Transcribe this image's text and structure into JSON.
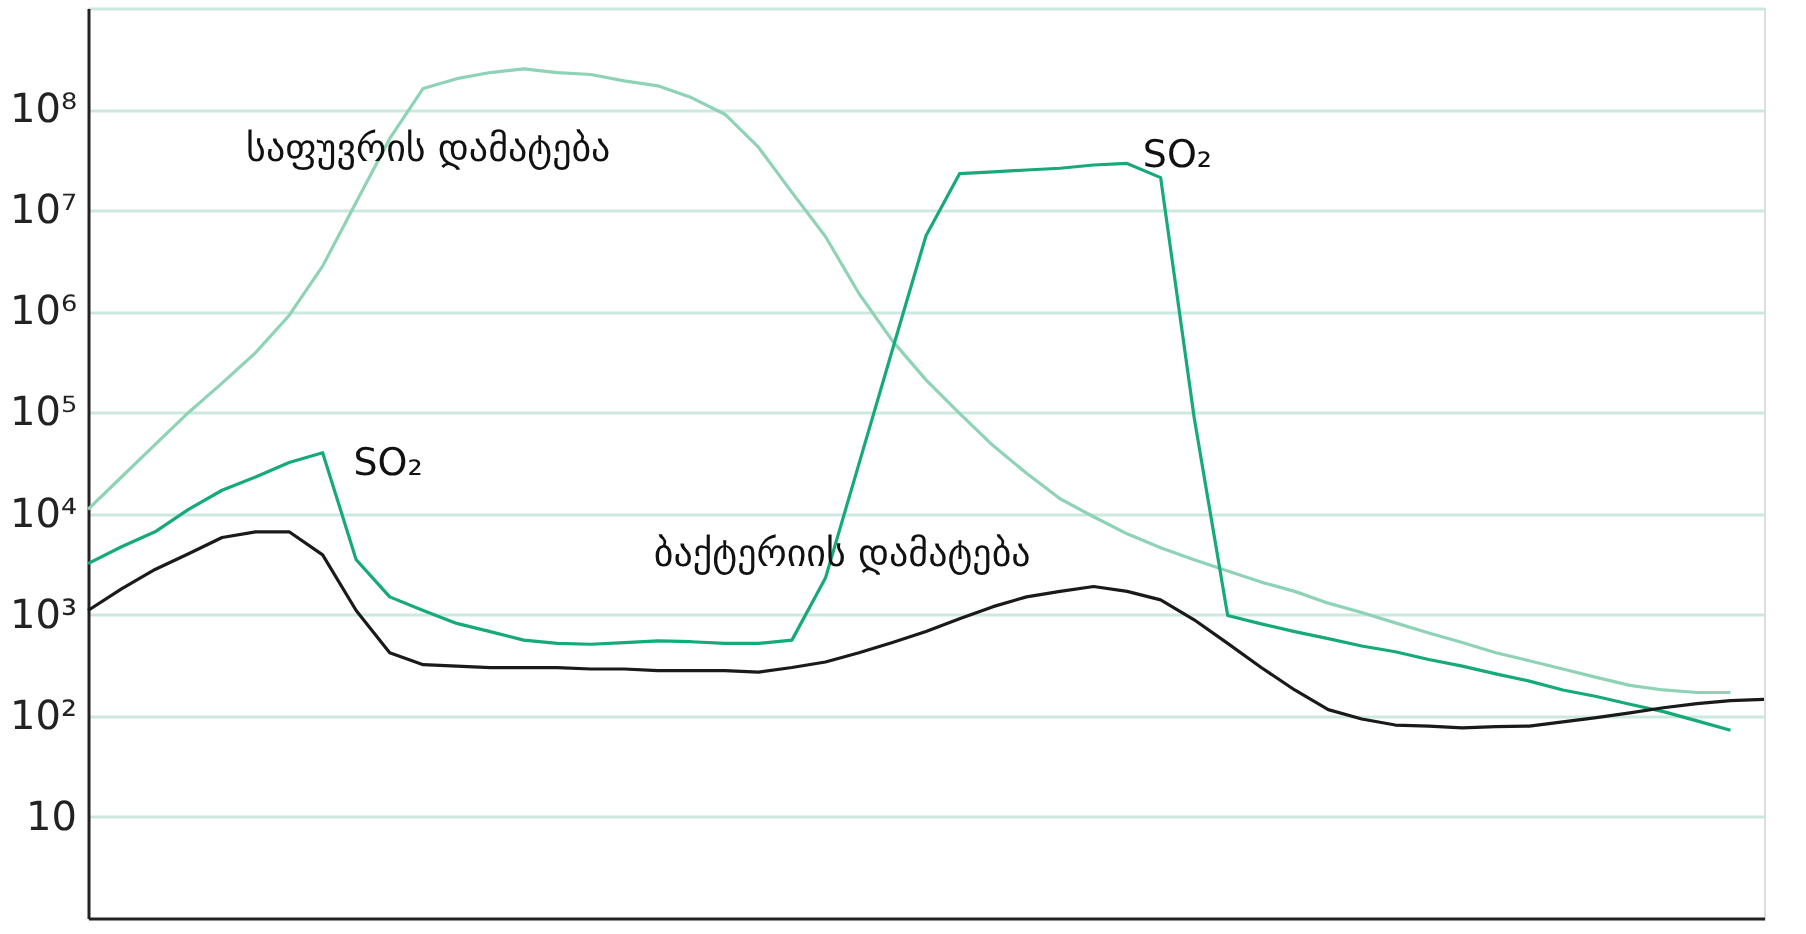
{
  "chart_data": {
    "type": "line",
    "log": "y",
    "grid": "y",
    "tick_labels": "y",
    "categories": [
      null,
      null,
      null,
      null,
      null,
      null,
      null,
      null,
      null,
      null,
      null,
      null,
      null,
      null,
      null,
      null,
      null,
      null,
      null,
      null,
      null,
      null,
      null,
      null,
      null,
      null,
      null,
      null,
      null,
      null,
      null,
      null,
      null,
      null,
      null,
      null,
      null,
      null,
      null,
      null,
      null,
      null,
      null,
      null,
      null,
      null,
      null,
      null,
      null,
      null,
      null
    ],
    "ylim": [
      1,
      1000000000
    ],
    "yticks": [
      {
        "value": 10,
        "label": "10"
      },
      {
        "value": 100,
        "label": "10²"
      },
      {
        "value": 1000,
        "label": "10³"
      },
      {
        "value": 10000,
        "label": "10⁴"
      },
      {
        "value": 100000,
        "label": "10⁵"
      },
      {
        "value": 1000000,
        "label": "10⁶"
      },
      {
        "value": 10000000,
        "label": "10⁷"
      },
      {
        "value": 100000000,
        "label": "10⁸"
      },
      {
        "value": 1000000000,
        "label": null
      }
    ],
    "series": [
      {
        "color": "#8fd3b6",
        "values": [
          11000,
          23000,
          48000,
          100000,
          195000,
          390000,
          910000,
          2800000,
          12000000,
          51000000,
          160000000,
          200000000,
          230000000,
          250000000,
          230000000,
          220000000,
          190000000,
          170000000,
          130000000,
          89000000,
          42000000,
          15000000,
          5500000,
          1500000,
          510000,
          210000,
          98000,
          47000,
          25000,
          14000,
          9300,
          6300,
          4600,
          3500,
          2700,
          2100,
          1700,
          1300,
          1050,
          830,
          660,
          530,
          420,
          350,
          290,
          240,
          200,
          180,
          170,
          170,
          null
        ]
      },
      {
        "color": "#16a97a",
        "values": [
          3200,
          4700,
          6600,
          11000,
          17000,
          23000,
          32000,
          40000,
          3500,
          1500,
          1100,
          820,
          680,
          560,
          520,
          510,
          530,
          550,
          540,
          520,
          520,
          560,
          2300,
          31000,
          420000,
          5600000,
          23000000,
          24000000,
          25000000,
          26000000,
          28000000,
          29000000,
          21000000,
          89000,
          980,
          810,
          680,
          580,
          490,
          430,
          360,
          310,
          260,
          220,
          180,
          155,
          130,
          110,
          89,
          72,
          null
        ]
      },
      {
        "color": "#1a1a1a",
        "values": [
          1100,
          1800,
          2800,
          4000,
          5800,
          6600,
          6600,
          3900,
          1100,
          420,
          320,
          310,
          300,
          300,
          300,
          290,
          290,
          280,
          280,
          280,
          270,
          300,
          340,
          420,
          530,
          680,
          910,
          1200,
          1500,
          1700,
          1900,
          1700,
          1400,
          890,
          520,
          300,
          180,
          115,
          93,
          81,
          79,
          76,
          78,
          79,
          87,
          96,
          107,
          120,
          132,
          141,
          145
        ]
      }
    ],
    "annotations": [
      "საფუვრის დამატება",
      "SO₂",
      "SO₂",
      "ბაქტერიის დამატება"
    ]
  }
}
